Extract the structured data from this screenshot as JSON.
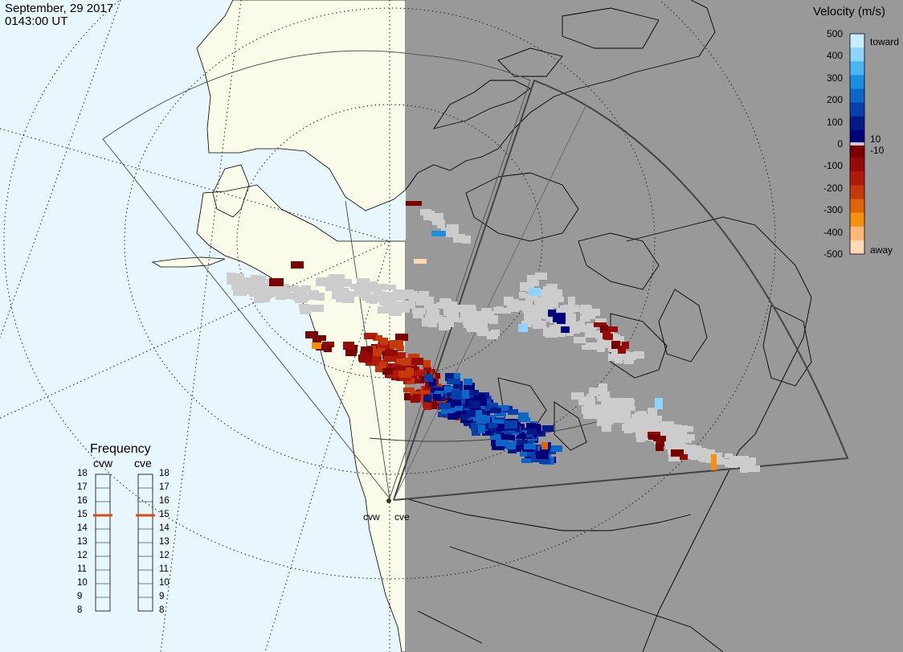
{
  "header": {
    "date": "September, 29 2017",
    "time": "0143:00 UT"
  },
  "velocity_scale": {
    "title": "Velocity (m/s)",
    "ticks": [
      "500",
      "400",
      "300",
      "200",
      "100",
      "0",
      "-100",
      "-200",
      "-300",
      "-400",
      "-500"
    ],
    "toward_label": "toward",
    "away_label": "away",
    "ten_label": "10",
    "minus_ten_label": "-10",
    "colors_top_to_bottom": [
      "#c7ecff",
      "#8fd3ff",
      "#4cb4f2",
      "#1a8fe0",
      "#0c66c8",
      "#0740a8",
      "#041a88",
      "#00007a",
      "#7a0000",
      "#960a0a",
      "#b01a0a",
      "#c53a08",
      "#e0640a",
      "#f5900f",
      "#ffb878",
      "#ffd9b5"
    ],
    "ground_scatter_color": "#cccccc"
  },
  "frequency_panel": {
    "title": "Frequency",
    "radars": [
      {
        "label": "cvw",
        "value_mhz": 15
      },
      {
        "label": "cve",
        "value_mhz": 15
      }
    ],
    "ticks": [
      "18",
      "17",
      "16",
      "15",
      "14",
      "13",
      "12",
      "11",
      "10",
      "9",
      "8"
    ],
    "marker_color": "#e04a10"
  },
  "radars": [
    {
      "label": "cvw"
    },
    {
      "label": "cve"
    }
  ],
  "map": {
    "day_ocean_color": "#e8f6fe",
    "day_land_color": "#fbfbea",
    "night_color": "#999999"
  }
}
